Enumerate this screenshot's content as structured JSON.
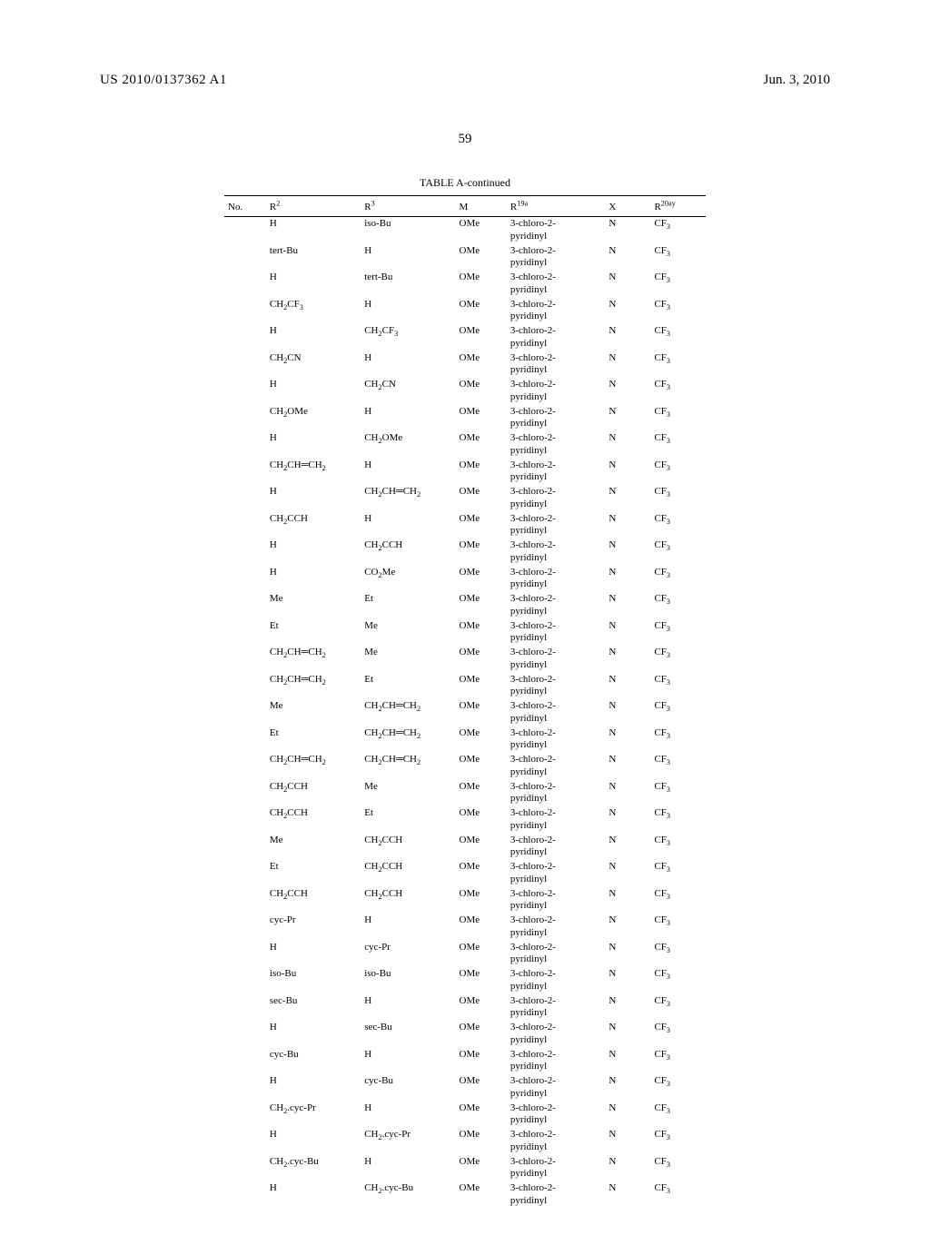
{
  "header": {
    "pub_number": "US 2010/0137362 A1",
    "pub_date": "Jun. 3, 2010"
  },
  "page_number": "59",
  "table": {
    "title": "TABLE A-continued",
    "columns": {
      "no": "No.",
      "r2": "R<sup>2</sup>",
      "r3": "R<sup>3</sup>",
      "m": "M",
      "r19a": "R<sup>19a</sup>",
      "x": "X",
      "r20ay": "R<sup>20ay</sup>"
    },
    "common": {
      "m": "OMe",
      "r19a": "3-chloro-2-<br>pyridinyl",
      "x": "N",
      "r20ay": "CF<sub>3</sub>"
    },
    "rows": [
      {
        "r2": "H",
        "r3": "iso-Bu"
      },
      {
        "r2": "tert-Bu",
        "r3": "H"
      },
      {
        "r2": "H",
        "r3": "tert-Bu"
      },
      {
        "r2": "CH<sub>2</sub>CF<sub>3</sub>",
        "r3": "H"
      },
      {
        "r2": "H",
        "r3": "CH<sub>2</sub>CF<sub>3</sub>"
      },
      {
        "r2": "CH<sub>2</sub>CN",
        "r3": "H"
      },
      {
        "r2": "H",
        "r3": "CH<sub>2</sub>CN"
      },
      {
        "r2": "CH<sub>2</sub>OMe",
        "r3": "H"
      },
      {
        "r2": "H",
        "r3": "CH<sub>2</sub>OMe"
      },
      {
        "r2": "CH<sub>2</sub>CH&#9552;CH<sub>2</sub>",
        "r3": "H"
      },
      {
        "r2": "H",
        "r3": "CH<sub>2</sub>CH&#9552;CH<sub>2</sub>"
      },
      {
        "r2": "CH<sub>2</sub>CCH",
        "r3": "H"
      },
      {
        "r2": "H",
        "r3": "CH<sub>2</sub>CCH"
      },
      {
        "r2": "H",
        "r3": "CO<sub>2</sub>Me"
      },
      {
        "r2": "Me",
        "r3": "Et"
      },
      {
        "r2": "Et",
        "r3": "Me"
      },
      {
        "r2": "CH<sub>2</sub>CH&#9552;CH<sub>2</sub>",
        "r3": "Me"
      },
      {
        "r2": "CH<sub>2</sub>CH&#9552;CH<sub>2</sub>",
        "r3": "Et"
      },
      {
        "r2": "Me",
        "r3": "CH<sub>2</sub>CH&#9552;CH<sub>2</sub>"
      },
      {
        "r2": "Et",
        "r3": "CH<sub>2</sub>CH&#9552;CH<sub>2</sub>"
      },
      {
        "r2": "CH<sub>2</sub>CH&#9552;CH<sub>2</sub>",
        "r3": "CH<sub>2</sub>CH&#9552;CH<sub>2</sub>"
      },
      {
        "r2": "CH<sub>2</sub>CCH",
        "r3": "Me"
      },
      {
        "r2": "CH<sub>2</sub>CCH",
        "r3": "Et"
      },
      {
        "r2": "Me",
        "r3": "CH<sub>2</sub>CCH"
      },
      {
        "r2": "Et",
        "r3": "CH<sub>2</sub>CCH"
      },
      {
        "r2": "CH<sub>2</sub>CCH",
        "r3": "CH<sub>2</sub>CCH"
      },
      {
        "r2": "cyc-Pr",
        "r3": "H"
      },
      {
        "r2": "H",
        "r3": "cyc-Pr"
      },
      {
        "r2": "iso-Bu",
        "r3": "iso-Bu"
      },
      {
        "r2": "sec-Bu",
        "r3": "H"
      },
      {
        "r2": "H",
        "r3": "sec-Bu"
      },
      {
        "r2": "cyc-Bu",
        "r3": "H"
      },
      {
        "r2": "H",
        "r3": "cyc-Bu"
      },
      {
        "r2": "CH<sub>2</sub>.cyc-Pr",
        "r3": "H"
      },
      {
        "r2": "H",
        "r3": "CH<sub>2</sub>.cyc-Pr"
      },
      {
        "r2": "CH<sub>2</sub>.cyc-Bu",
        "r3": "H"
      },
      {
        "r2": "H",
        "r3": "CH<sub>2</sub>.cyc-Bu"
      }
    ]
  }
}
